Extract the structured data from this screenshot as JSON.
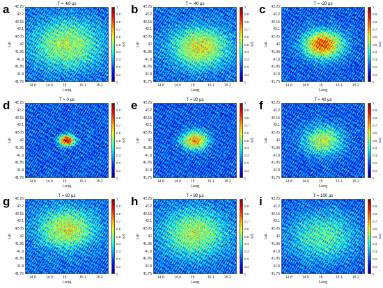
{
  "chart_data": [
    {
      "panel": "a",
      "title": "T = -60 µs",
      "type": "heatmap",
      "xlabel": "Long",
      "ylabel": "Lat",
      "colorbar_label": "|ωt|",
      "xlim": [
        14.75,
        15.25
      ],
      "ylim": [
        41.75,
        42.25
      ],
      "xticks": [
        "14.8",
        "14.9",
        "15",
        "15.1",
        "15.2"
      ],
      "yticks": [
        "42.25",
        "42.2",
        "42.15",
        "42.1",
        "42.05",
        "42",
        "41.95",
        "41.9",
        "41.85",
        "41.8",
        "41.75"
      ],
      "clim": [
        0,
        1
      ],
      "cbticks": [
        "1",
        "0.9",
        "0.8",
        "0.7",
        "0.6",
        "0.5",
        "0.4",
        "0.3",
        "0.2",
        "0.1",
        "0"
      ],
      "colormap": "jet",
      "hotspot": {
        "x": 15.0,
        "y": 42.0,
        "peak": 0.55,
        "spread": 0.16
      },
      "background_level": 0.22
    },
    {
      "panel": "b",
      "title": "T = -40 µs",
      "type": "heatmap",
      "xlabel": "Long",
      "ylabel": "Lat",
      "colorbar_label": "|ωt|",
      "xlim": [
        14.75,
        15.25
      ],
      "ylim": [
        41.75,
        42.25
      ],
      "xticks": [
        "14.8",
        "14.9",
        "15",
        "15.1",
        "15.2"
      ],
      "yticks": [
        "42.25",
        "42.2",
        "42.15",
        "42.1",
        "42.05",
        "42",
        "41.95",
        "41.9",
        "41.85",
        "41.8",
        "41.75"
      ],
      "clim": [
        0,
        1
      ],
      "cbticks": [
        "1",
        "0.9",
        "0.8",
        "0.7",
        "0.6",
        "0.5",
        "0.4",
        "0.3",
        "0.2",
        "0.1",
        "0"
      ],
      "colormap": "jet",
      "hotspot": {
        "x": 15.03,
        "y": 41.98,
        "peak": 0.62,
        "spread": 0.13
      },
      "background_level": 0.22
    },
    {
      "panel": "c",
      "title": "T = -20 µs",
      "type": "heatmap",
      "xlabel": "Long",
      "ylabel": "Lat",
      "colorbar_label": "|ωt|",
      "xlim": [
        14.75,
        15.25
      ],
      "ylim": [
        41.75,
        42.25
      ],
      "xticks": [
        "14.8",
        "14.9",
        "15",
        "15.1",
        "15.2"
      ],
      "yticks": [
        "42.25",
        "42.2",
        "42.15",
        "42.1",
        "42.05",
        "42",
        "41.95",
        "41.9",
        "41.85",
        "41.8",
        "41.75"
      ],
      "clim": [
        0,
        1
      ],
      "cbticks": [
        "1",
        "0.9",
        "0.8",
        "0.7",
        "0.6",
        "0.5",
        "0.4",
        "0.3",
        "0.2",
        "0.1",
        "0"
      ],
      "colormap": "jet",
      "hotspot": {
        "x": 15.0,
        "y": 42.0,
        "peak": 0.8,
        "spread": 0.09
      },
      "background_level": 0.2
    },
    {
      "panel": "d",
      "title": "T = 0 µs",
      "type": "heatmap",
      "xlabel": "Long",
      "ylabel": "Lat",
      "colorbar_label": "|ωt|",
      "xlim": [
        14.75,
        15.25
      ],
      "ylim": [
        41.75,
        42.25
      ],
      "xticks": [
        "14.8",
        "14.9",
        "15",
        "15.1",
        "15.2"
      ],
      "yticks": [
        "42.25",
        "42.2",
        "42.15",
        "42.1",
        "42.05",
        "42",
        "41.95",
        "41.9",
        "41.85",
        "41.8",
        "41.75"
      ],
      "clim": [
        0,
        1
      ],
      "cbticks": [
        "1",
        "0.9",
        "0.8",
        "0.7",
        "0.6",
        "0.5",
        "0.4",
        "0.3",
        "0.2",
        "0.1",
        "0"
      ],
      "colormap": "jet",
      "hotspot": {
        "x": 15.0,
        "y": 42.0,
        "peak": 0.95,
        "spread": 0.035
      },
      "background_level": 0.2
    },
    {
      "panel": "e",
      "title": "T = 20 µs",
      "type": "heatmap",
      "xlabel": "Long",
      "ylabel": "Lat",
      "colorbar_label": "|ωt|",
      "xlim": [
        14.75,
        15.25
      ],
      "ylim": [
        41.75,
        42.25
      ],
      "xticks": [
        "14.8",
        "14.9",
        "15",
        "15.1",
        "15.2"
      ],
      "yticks": [
        "42.25",
        "42.2",
        "42.15",
        "42.1",
        "42.05",
        "42",
        "41.95",
        "41.9",
        "41.85",
        "41.8",
        "41.75"
      ],
      "clim": [
        0,
        1
      ],
      "cbticks": [
        "1",
        "0.9",
        "0.8",
        "0.7",
        "0.6",
        "0.5",
        "0.4",
        "0.3",
        "0.2",
        "0.1",
        "0"
      ],
      "colormap": "jet",
      "hotspot": {
        "x": 15.0,
        "y": 42.0,
        "peak": 0.72,
        "spread": 0.06
      },
      "background_level": 0.2
    },
    {
      "panel": "f",
      "title": "T = 40 µs",
      "type": "heatmap",
      "xlabel": "Long",
      "ylabel": "Lat",
      "colorbar_label": "|ωt|",
      "xlim": [
        14.75,
        15.25
      ],
      "ylim": [
        41.75,
        42.25
      ],
      "xticks": [
        "14.8",
        "14.9",
        "15",
        "15.1",
        "15.2"
      ],
      "yticks": [
        "42.25",
        "42.2",
        "42.15",
        "42.1",
        "42.05",
        "42",
        "41.95",
        "41.9",
        "41.85",
        "41.8",
        "41.75"
      ],
      "clim": [
        0,
        1
      ],
      "cbticks": [
        "1",
        "0.9",
        "0.8",
        "0.7",
        "0.6",
        "0.5",
        "0.4",
        "0.3",
        "0.2",
        "0.1",
        "0"
      ],
      "colormap": "jet",
      "hotspot": {
        "x": 15.0,
        "y": 42.0,
        "peak": 0.58,
        "spread": 0.09
      },
      "background_level": 0.2
    },
    {
      "panel": "g",
      "title": "T = 60 µs",
      "type": "heatmap",
      "xlabel": "Long",
      "ylabel": "Lat",
      "colorbar_label": "|ωt|",
      "xlim": [
        14.75,
        15.25
      ],
      "ylim": [
        41.75,
        42.25
      ],
      "xticks": [
        "14.8",
        "14.9",
        "15",
        "15.1",
        "15.2"
      ],
      "yticks": [
        "42.25",
        "42.2",
        "42.15",
        "42.1",
        "42.05",
        "42",
        "41.95",
        "41.9",
        "41.85",
        "41.8",
        "41.75"
      ],
      "clim": [
        0,
        1
      ],
      "cbticks": [
        "1",
        "0.9",
        "0.8",
        "0.7",
        "0.6",
        "0.5",
        "0.4",
        "0.3",
        "0.2",
        "0.1",
        "0"
      ],
      "colormap": "jet",
      "hotspot": {
        "x": 15.0,
        "y": 42.05,
        "peak": 0.6,
        "spread": 0.13
      },
      "background_level": 0.22
    },
    {
      "panel": "h",
      "title": "T = 80 µs",
      "type": "heatmap",
      "xlabel": "Long",
      "ylabel": "Lat",
      "colorbar_label": "|ωt|",
      "xlim": [
        14.75,
        15.25
      ],
      "ylim": [
        41.75,
        42.25
      ],
      "xticks": [
        "14.8",
        "14.9",
        "15",
        "15.1",
        "15.2"
      ],
      "yticks": [
        "42.25",
        "42.2",
        "42.15",
        "42.1",
        "42.05",
        "42",
        "41.95",
        "41.9",
        "41.85",
        "41.8",
        "41.75"
      ],
      "clim": [
        0,
        1
      ],
      "cbticks": [
        "1",
        "0.9",
        "0.8",
        "0.7",
        "0.6",
        "0.5",
        "0.4",
        "0.3",
        "0.2",
        "0.1",
        "0"
      ],
      "colormap": "jet",
      "hotspot": {
        "x": 15.0,
        "y": 42.02,
        "peak": 0.55,
        "spread": 0.15
      },
      "background_level": 0.22
    },
    {
      "panel": "i",
      "title": "T = 100 µs",
      "type": "heatmap",
      "xlabel": "Long",
      "ylabel": "Lat",
      "colorbar_label": "|ωt|",
      "xlim": [
        14.75,
        15.25
      ],
      "ylim": [
        41.75,
        42.25
      ],
      "xticks": [
        "14.8",
        "14.9",
        "15",
        "15.1",
        "15.2"
      ],
      "yticks": [
        "42.25",
        "42.2",
        "42.15",
        "42.1",
        "42.05",
        "42",
        "41.95",
        "41.9",
        "41.85",
        "41.8",
        "41.75"
      ],
      "clim": [
        0,
        1
      ],
      "cbticks": [
        "1",
        "0.9",
        "0.8",
        "0.7",
        "0.6",
        "0.5",
        "0.4",
        "0.3",
        "0.2",
        "0.1",
        "0"
      ],
      "colormap": "jet",
      "hotspot": {
        "x": 15.0,
        "y": 42.0,
        "peak": 0.45,
        "spread": 0.16
      },
      "background_level": 0.2
    }
  ]
}
